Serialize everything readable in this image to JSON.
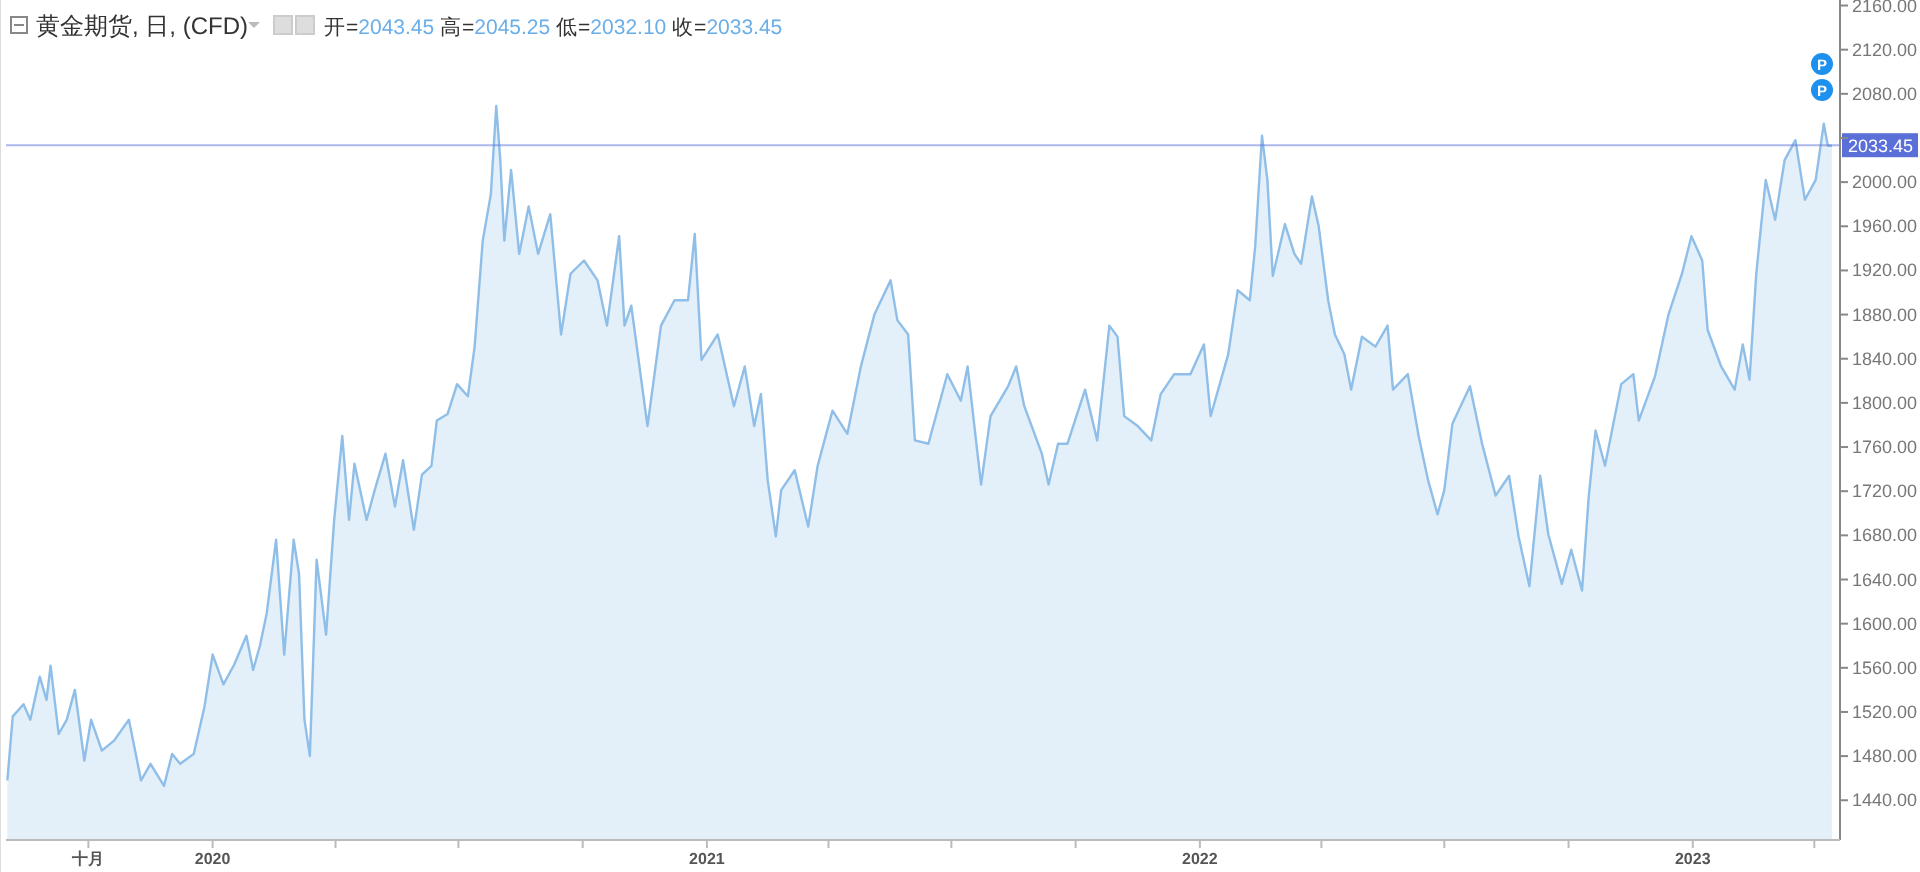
{
  "chart_data": {
    "type": "area",
    "title": "黄金期货, 日, (CFD)",
    "subtitle": "开=2043.45 高=2045.25 低=2032.10 收=2033.45",
    "annotations": [
      "P",
      "P"
    ],
    "x": [
      "2019-08-02",
      "2019-08-06",
      "2019-08-14",
      "2019-08-19",
      "2019-08-26",
      "2019-08-31",
      "2019-09-03",
      "2019-09-09",
      "2019-09-15",
      "2019-09-21",
      "2019-09-28",
      "2019-10-03",
      "2019-10-11",
      "2019-10-20",
      "2019-10-31",
      "2019-11-09",
      "2019-11-16",
      "2019-11-26",
      "2019-12-02",
      "2019-12-08",
      "2019-12-18",
      "2019-12-26",
      "2020-01-01",
      "2020-01-09",
      "2020-01-17",
      "2020-01-26",
      "2020-01-31",
      "2020-02-05",
      "2020-02-10",
      "2020-02-17",
      "2020-02-23",
      "2020-03-01",
      "2020-03-05",
      "2020-03-09",
      "2020-03-13",
      "2020-03-18",
      "2020-03-25",
      "2020-03-31",
      "2020-04-06",
      "2020-04-11",
      "2020-04-15",
      "2020-04-24",
      "2020-04-30",
      "2020-05-08",
      "2020-05-15",
      "2020-05-21",
      "2020-05-29",
      "2020-06-04",
      "2020-06-11",
      "2020-06-15",
      "2020-06-23",
      "2020-06-30",
      "2020-07-08",
      "2020-07-13",
      "2020-07-19",
      "2020-07-25",
      "2020-07-29",
      "2020-08-01",
      "2020-08-04",
      "2020-08-09",
      "2020-08-15",
      "2020-08-22",
      "2020-08-29",
      "2020-09-07",
      "2020-09-15",
      "2020-09-22",
      "2020-10-02",
      "2020-10-12",
      "2020-10-19",
      "2020-10-28",
      "2020-11-01",
      "2020-11-06",
      "2020-11-18",
      "2020-11-28",
      "2020-12-08",
      "2020-12-18",
      "2020-12-23",
      "2020-12-28",
      "2021-01-09",
      "2021-01-21",
      "2021-01-29",
      "2021-02-05",
      "2021-02-10",
      "2021-02-15",
      "2021-02-21",
      "2021-02-25",
      "2021-03-07",
      "2021-03-17",
      "2021-03-24",
      "2021-04-04",
      "2021-04-15",
      "2021-04-25",
      "2021-05-05",
      "2021-05-17",
      "2021-05-22",
      "2021-05-30",
      "2021-06-04",
      "2021-06-14",
      "2021-06-28",
      "2021-07-08",
      "2021-07-13",
      "2021-07-23",
      "2021-07-30",
      "2021-08-12",
      "2021-08-18",
      "2021-08-24",
      "2021-09-06",
      "2021-09-11",
      "2021-09-18",
      "2021-09-25",
      "2021-10-08",
      "2021-10-17",
      "2021-10-26",
      "2021-11-01",
      "2021-11-06",
      "2021-11-16",
      "2021-11-26",
      "2021-12-03",
      "2021-12-13",
      "2021-12-25",
      "2022-01-04",
      "2022-01-09",
      "2022-01-22",
      "2022-01-29",
      "2022-02-07",
      "2022-02-11",
      "2022-02-16",
      "2022-02-20",
      "2022-02-24",
      "2022-03-05",
      "2022-03-12",
      "2022-03-17",
      "2022-03-25",
      "2022-03-30",
      "2022-04-06",
      "2022-04-11",
      "2022-04-18",
      "2022-04-23",
      "2022-05-01",
      "2022-05-11",
      "2022-05-20",
      "2022-05-24",
      "2022-06-04",
      "2022-06-12",
      "2022-06-19",
      "2022-06-26",
      "2022-07-01",
      "2022-07-07",
      "2022-07-20",
      "2022-07-29",
      "2022-08-08",
      "2022-08-18",
      "2022-08-25",
      "2022-09-02",
      "2022-09-10",
      "2022-09-16",
      "2022-09-26",
      "2022-10-03",
      "2022-10-11",
      "2022-10-16",
      "2022-10-21",
      "2022-10-28",
      "2022-11-09",
      "2022-11-18",
      "2022-11-22",
      "2022-12-04",
      "2022-12-14",
      "2022-12-24",
      "2022-12-31",
      "2023-01-08",
      "2023-01-12",
      "2023-01-22",
      "2023-02-01",
      "2023-02-07",
      "2023-02-12",
      "2023-02-17",
      "2023-02-24",
      "2023-03-03",
      "2023-03-10",
      "2023-03-18",
      "2023-03-25",
      "2023-04-02",
      "2023-04-08",
      "2023-04-11",
      "2023-04-14"
    ],
    "series": [
      {
        "color": "#8fbfe8",
        "values": [
          1458,
          1516,
          1527,
          1513,
          1552,
          1531,
          1562,
          1500,
          1513,
          1540,
          1476,
          1513,
          1485,
          1494,
          1513,
          1458,
          1473,
          1453,
          1482,
          1473,
          1482,
          1525,
          1572,
          1545,
          1563,
          1589,
          1558,
          1580,
          1609,
          1676,
          1572,
          1676,
          1645,
          1513,
          1480,
          1658,
          1590,
          1694,
          1770,
          1694,
          1745,
          1694,
          1721,
          1754,
          1706,
          1748,
          1685,
          1735,
          1743,
          1784,
          1790,
          1817,
          1806,
          1851,
          1947,
          1989,
          2069,
          2020,
          1947,
          2011,
          1935,
          1978,
          1935,
          1971,
          1862,
          1917,
          1929,
          1911,
          1870,
          1951,
          1870,
          1888,
          1779,
          1870,
          1893,
          1893,
          1953,
          1839,
          1862,
          1797,
          1833,
          1779,
          1808,
          1730,
          1679,
          1721,
          1739,
          1688,
          1743,
          1793,
          1772,
          1833,
          1880,
          1911,
          1875,
          1862,
          1766,
          1763,
          1826,
          1802,
          1833,
          1726,
          1788,
          1815,
          1833,
          1797,
          1754,
          1726,
          1763,
          1763,
          1812,
          1766,
          1870,
          1860,
          1788,
          1779,
          1766,
          1808,
          1826,
          1826,
          1853,
          1788,
          1844,
          1902,
          1893,
          1942,
          2042,
          2002,
          1915,
          1962,
          1935,
          1926,
          1987,
          1960,
          1893,
          1862,
          1844,
          1812,
          1860,
          1851,
          1870,
          1812,
          1826,
          1770,
          1730,
          1699,
          1721,
          1781,
          1815,
          1763,
          1716,
          1734,
          1679,
          1634,
          1734,
          1681,
          1636,
          1667,
          1630,
          1716,
          1775,
          1743,
          1817,
          1826,
          1784,
          1824,
          1880,
          1917,
          1951,
          1929,
          1866,
          1833,
          1812,
          1853,
          1821,
          1917,
          2002,
          1966,
          2020,
          2038,
          1984,
          2002,
          2053,
          2033,
          2033
        ]
      }
    ],
    "xlim": [
      "2019-08-01",
      "2023-04-20"
    ],
    "xticks": [
      {
        "value": "2019-10-01",
        "label": "十月"
      },
      {
        "value": "2020-01-01",
        "label": "2020"
      },
      {
        "value": "2020-04-01",
        "label": null
      },
      {
        "value": "2020-07-01",
        "label": null
      },
      {
        "value": "2020-10-01",
        "label": null
      },
      {
        "value": "2021-01-01",
        "label": "2021"
      },
      {
        "value": "2021-04-01",
        "label": null
      },
      {
        "value": "2021-07-01",
        "label": null
      },
      {
        "value": "2021-10-01",
        "label": null
      },
      {
        "value": "2022-01-01",
        "label": "2022"
      },
      {
        "value": "2022-04-01",
        "label": null
      },
      {
        "value": "2022-07-01",
        "label": null
      },
      {
        "value": "2022-10-01",
        "label": null
      },
      {
        "value": "2023-01-01",
        "label": "2023"
      },
      {
        "value": "2023-04-01",
        "label": null
      }
    ],
    "ylim": [
      1404,
      2165
    ],
    "yticks": [
      {
        "value": 1440,
        "label": "1440.00"
      },
      {
        "value": 1480,
        "label": "1480.00"
      },
      {
        "value": 1520,
        "label": "1520.00"
      },
      {
        "value": 1560,
        "label": "1560.00"
      },
      {
        "value": 1600,
        "label": "1600.00"
      },
      {
        "value": 1640,
        "label": "1640.00"
      },
      {
        "value": 1680,
        "label": "1680.00"
      },
      {
        "value": 1720,
        "label": "1720.00"
      },
      {
        "value": 1760,
        "label": "1760.00"
      },
      {
        "value": 1800,
        "label": "1800.00"
      },
      {
        "value": 1840,
        "label": "1840.00"
      },
      {
        "value": 1880,
        "label": "1880.00"
      },
      {
        "value": 1920,
        "label": "1920.00"
      },
      {
        "value": 1960,
        "label": "1960.00"
      },
      {
        "value": 2000,
        "label": "2000.00"
      },
      {
        "value": 2040,
        "label": null
      },
      {
        "value": 2080,
        "label": "2080.00"
      },
      {
        "value": 2120,
        "label": "2120.00"
      },
      {
        "value": 2160,
        "label": "2160.00"
      }
    ],
    "ref_lines": [
      {
        "axis": "y",
        "value": 2033.45,
        "label": "2033.45",
        "color": "#5b6fd8"
      }
    ],
    "grid": false
  }
}
